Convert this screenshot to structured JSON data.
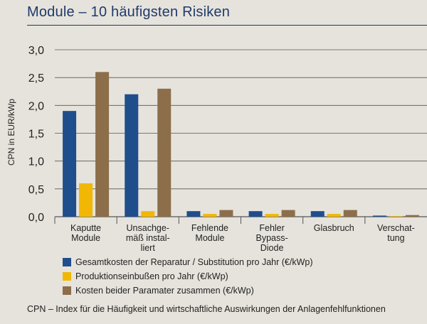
{
  "title": "Module – 10 häufigsten Risiken",
  "footnote": "CPN – Index für die Häufigkeit und wirtschaftliche Auswirkungen der Anlagenfehlfunktionen",
  "colors": {
    "series1": "#1f4e8c",
    "series2": "#f2b705",
    "series3": "#8c6e4b",
    "grid": "#555555",
    "title": "#1f3a6b"
  },
  "chart_data": {
    "type": "bar",
    "title": "Module – 10 häufigsten Risiken",
    "ylabel": "CPN in EUR/kWp",
    "xlabel": "",
    "ylim": [
      0,
      3.0
    ],
    "yticks": [
      "0,0",
      "0,5",
      "1,0",
      "1,5",
      "2,0",
      "2,5",
      "3,0"
    ],
    "grid": true,
    "legend_position": "bottom",
    "categories": [
      [
        "Kaputte",
        "Module"
      ],
      [
        "Unsachge-",
        "mäß instal-",
        "liert"
      ],
      [
        "Fehlende",
        "Module"
      ],
      [
        "Fehler",
        "Bypass-",
        "Diode"
      ],
      [
        "Glasbruch"
      ],
      [
        "Verschat-",
        "tung"
      ]
    ],
    "series": [
      {
        "name": "Gesamtkosten der Reparatur / Substitution pro Jahr (€/kWp)",
        "values": [
          1.9,
          2.2,
          0.1,
          0.1,
          0.1,
          0.02
        ]
      },
      {
        "name": "Produktionseinbußen pro Jahr (€/kWp)",
        "values": [
          0.6,
          0.1,
          0.05,
          0.05,
          0.05,
          0.01
        ]
      },
      {
        "name": "Kosten beider Paramater zusammen (€/kWp)",
        "values": [
          2.6,
          2.3,
          0.12,
          0.12,
          0.12,
          0.03
        ]
      }
    ]
  }
}
